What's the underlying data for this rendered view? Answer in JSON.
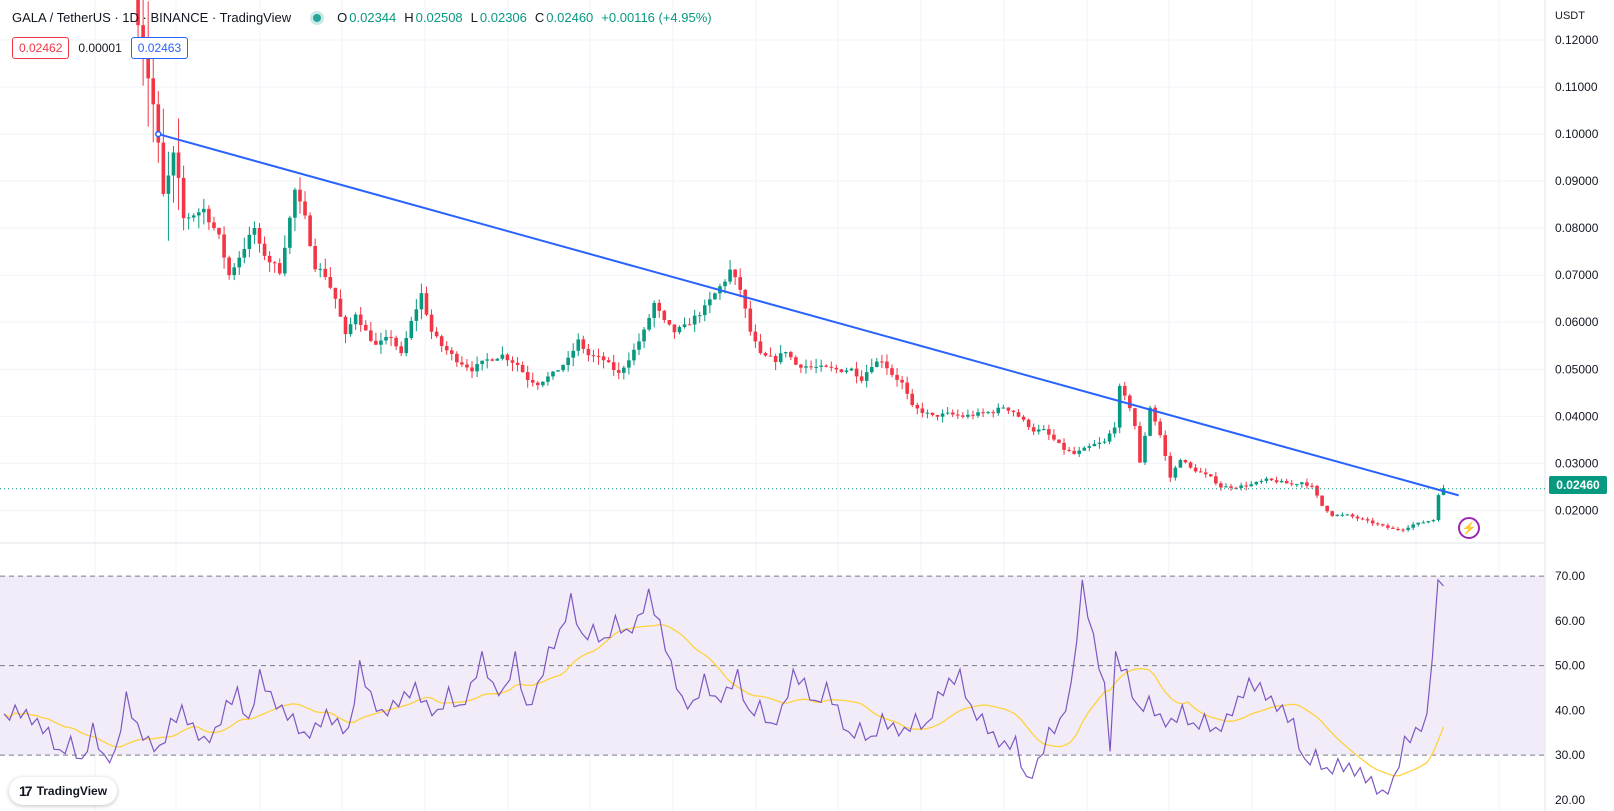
{
  "legend": {
    "title": "GALA / TetherUS · 1D · BINANCE · TradingView",
    "o_label": "O",
    "o_value": "0.02344",
    "h_label": "H",
    "h_value": "0.02508",
    "l_label": "L",
    "l_value": "0.02306",
    "c_label": "C",
    "c_value": "0.02460",
    "change": "+0.00116 (+4.95%)"
  },
  "order": {
    "sell": "0.02462",
    "spread": "0.00001",
    "buy": "0.02463"
  },
  "currency": "USDT",
  "last_price": "0.02460",
  "brand": "TradingView",
  "colors": {
    "up": "#089981",
    "down": "#f23645",
    "trendline": "#2962ff",
    "rsi": "#7e57c2",
    "rsi_ma": "#ffd23f",
    "rsi_band": "#ede7f6"
  },
  "icons": {
    "logo": "tradingview-logo-icon",
    "alert": "lightning-icon"
  },
  "chart_data": [
    {
      "type": "candlestick",
      "symbol": "GALA / TetherUS",
      "interval": "1D",
      "ylim": [
        0.0135,
        0.1285
      ],
      "yticks": [
        "0.02000",
        "0.03000",
        "0.04000",
        "0.05000",
        "0.06000",
        "0.07000",
        "0.08000",
        "0.09000",
        "0.10000",
        "0.11000",
        "0.12000"
      ],
      "anchors": [
        [
          0,
          0.135
        ],
        [
          4,
          0.106
        ],
        [
          6,
          0.086
        ],
        [
          8,
          0.094
        ],
        [
          10,
          0.082
        ],
        [
          14,
          0.084
        ],
        [
          17,
          0.078
        ],
        [
          19,
          0.07
        ],
        [
          22,
          0.076
        ],
        [
          24,
          0.08
        ],
        [
          25,
          0.076
        ],
        [
          27,
          0.073
        ],
        [
          29,
          0.071
        ],
        [
          31,
          0.082
        ],
        [
          32,
          0.088
        ],
        [
          34,
          0.082
        ],
        [
          36,
          0.072
        ],
        [
          38,
          0.07
        ],
        [
          40,
          0.065
        ],
        [
          42,
          0.057
        ],
        [
          44,
          0.062
        ],
        [
          46,
          0.058
        ],
        [
          48,
          0.055
        ],
        [
          51,
          0.057
        ],
        [
          53,
          0.053
        ],
        [
          55,
          0.06
        ],
        [
          57,
          0.066
        ],
        [
          59,
          0.058
        ],
        [
          61,
          0.055
        ],
        [
          64,
          0.052
        ],
        [
          67,
          0.05
        ],
        [
          70,
          0.052
        ],
        [
          73,
          0.053
        ],
        [
          76,
          0.051
        ],
        [
          78,
          0.048
        ],
        [
          80,
          0.047
        ],
        [
          83,
          0.049
        ],
        [
          86,
          0.052
        ],
        [
          88,
          0.056
        ],
        [
          90,
          0.053
        ],
        [
          93,
          0.052
        ],
        [
          96,
          0.049
        ],
        [
          99,
          0.054
        ],
        [
          101,
          0.058
        ],
        [
          103,
          0.064
        ],
        [
          105,
          0.06
        ],
        [
          107,
          0.058
        ],
        [
          109,
          0.059
        ],
        [
          111,
          0.061
        ],
        [
          113,
          0.063
        ],
        [
          115,
          0.066
        ],
        [
          117,
          0.069
        ],
        [
          118,
          0.071
        ],
        [
          120,
          0.067
        ],
        [
          122,
          0.058
        ],
        [
          124,
          0.053
        ],
        [
          127,
          0.052
        ],
        [
          129,
          0.054
        ],
        [
          131,
          0.051
        ],
        [
          134,
          0.0505
        ],
        [
          137,
          0.0502
        ],
        [
          140,
          0.0498
        ],
        [
          142,
          0.05
        ],
        [
          144,
          0.048
        ],
        [
          146,
          0.051
        ],
        [
          148,
          0.052
        ],
        [
          150,
          0.049
        ],
        [
          152,
          0.047
        ],
        [
          154,
          0.042
        ],
        [
          156,
          0.041
        ],
        [
          158,
          0.04
        ],
        [
          161,
          0.0405
        ],
        [
          164,
          0.04
        ],
        [
          167,
          0.0405
        ],
        [
          170,
          0.041
        ],
        [
          172,
          0.042
        ],
        [
          174,
          0.041
        ],
        [
          176,
          0.039
        ],
        [
          178,
          0.037
        ],
        [
          180,
          0.037
        ],
        [
          182,
          0.035
        ],
        [
          184,
          0.033
        ],
        [
          186,
          0.032
        ],
        [
          188,
          0.033
        ],
        [
          190,
          0.034
        ],
        [
          192,
          0.0345
        ],
        [
          194,
          0.038
        ],
        [
          195,
          0.046
        ],
        [
          197,
          0.042
        ],
        [
          198,
          0.038
        ],
        [
          199,
          0.03
        ],
        [
          201,
          0.042
        ],
        [
          203,
          0.036
        ],
        [
          205,
          0.027
        ],
        [
          207,
          0.031
        ],
        [
          209,
          0.029
        ],
        [
          211,
          0.028
        ],
        [
          213,
          0.027
        ],
        [
          215,
          0.025
        ],
        [
          218,
          0.025
        ],
        [
          221,
          0.0255
        ],
        [
          224,
          0.0265
        ],
        [
          227,
          0.026
        ],
        [
          229,
          0.0255
        ],
        [
          231,
          0.026
        ],
        [
          233,
          0.025
        ],
        [
          235,
          0.021
        ],
        [
          237,
          0.019
        ],
        [
          240,
          0.019
        ],
        [
          243,
          0.018
        ],
        [
          246,
          0.017
        ],
        [
          249,
          0.016
        ],
        [
          251,
          0.016
        ],
        [
          253,
          0.017
        ],
        [
          255,
          0.0175
        ],
        [
          257,
          0.018
        ],
        [
          258,
          0.0235
        ],
        [
          259,
          0.0246
        ]
      ],
      "trendline": {
        "from": [
          5,
          0.1
        ],
        "to": [
          262,
          0.0232
        ]
      },
      "last_close": 0.0246
    },
    {
      "type": "line",
      "name": "RSI",
      "ylim": [
        17.5,
        72.5
      ],
      "yticks": [
        "20.00",
        "30.00",
        "40.00",
        "50.00",
        "60.00",
        "70.00"
      ],
      "bands": [
        30,
        50,
        70
      ],
      "anchors": [
        [
          0,
          38
        ],
        [
          2,
          40
        ],
        [
          4,
          39
        ],
        [
          6,
          37
        ],
        [
          8,
          35
        ],
        [
          10,
          30
        ],
        [
          12,
          33
        ],
        [
          14,
          28
        ],
        [
          16,
          36
        ],
        [
          18,
          29
        ],
        [
          20,
          30
        ],
        [
          22,
          43
        ],
        [
          24,
          36
        ],
        [
          26,
          33
        ],
        [
          28,
          31
        ],
        [
          30,
          37
        ],
        [
          32,
          40
        ],
        [
          34,
          36
        ],
        [
          36,
          33
        ],
        [
          38,
          35
        ],
        [
          40,
          41
        ],
        [
          42,
          44
        ],
        [
          44,
          37
        ],
        [
          46,
          48
        ],
        [
          48,
          43
        ],
        [
          50,
          40
        ],
        [
          52,
          38
        ],
        [
          54,
          34
        ],
        [
          56,
          36
        ],
        [
          58,
          39
        ],
        [
          60,
          37
        ],
        [
          62,
          35
        ],
        [
          64,
          50
        ],
        [
          66,
          43
        ],
        [
          68,
          39
        ],
        [
          70,
          41
        ],
        [
          72,
          43
        ],
        [
          74,
          45
        ],
        [
          76,
          41
        ],
        [
          78,
          39
        ],
        [
          80,
          44
        ],
        [
          82,
          40
        ],
        [
          84,
          45
        ],
        [
          86,
          52
        ],
        [
          88,
          45
        ],
        [
          90,
          44
        ],
        [
          92,
          52
        ],
        [
          94,
          40
        ],
        [
          96,
          45
        ],
        [
          98,
          53
        ],
        [
          100,
          57
        ],
        [
          102,
          65
        ],
        [
          104,
          56
        ],
        [
          106,
          58
        ],
        [
          108,
          55
        ],
        [
          110,
          60
        ],
        [
          112,
          57
        ],
        [
          114,
          60
        ],
        [
          116,
          66
        ],
        [
          118,
          59
        ],
        [
          120,
          50
        ],
        [
          122,
          42
        ],
        [
          124,
          41
        ],
        [
          126,
          47
        ],
        [
          128,
          42
        ],
        [
          130,
          44
        ],
        [
          132,
          48
        ],
        [
          134,
          39
        ],
        [
          136,
          41
        ],
        [
          138,
          36
        ],
        [
          140,
          40
        ],
        [
          142,
          48
        ],
        [
          144,
          46
        ],
        [
          146,
          41
        ],
        [
          148,
          45
        ],
        [
          150,
          40
        ],
        [
          152,
          34
        ],
        [
          154,
          36
        ],
        [
          156,
          33
        ],
        [
          158,
          38
        ],
        [
          160,
          36
        ],
        [
          162,
          35
        ],
        [
          164,
          38
        ],
        [
          166,
          36
        ],
        [
          168,
          43
        ],
        [
          170,
          46
        ],
        [
          172,
          48
        ],
        [
          174,
          40
        ],
        [
          176,
          38
        ],
        [
          178,
          34
        ],
        [
          180,
          32
        ],
        [
          182,
          33
        ],
        [
          184,
          24
        ],
        [
          186,
          28
        ],
        [
          188,
          35
        ],
        [
          190,
          37
        ],
        [
          192,
          45
        ],
        [
          194,
          68
        ],
        [
          196,
          56
        ],
        [
          198,
          45
        ],
        [
          199,
          32
        ],
        [
          200,
          52
        ],
        [
          202,
          48
        ],
        [
          204,
          40
        ],
        [
          206,
          42
        ],
        [
          208,
          38
        ],
        [
          210,
          37
        ],
        [
          212,
          40
        ],
        [
          214,
          36
        ],
        [
          216,
          38
        ],
        [
          218,
          35
        ],
        [
          220,
          38
        ],
        [
          222,
          42
        ],
        [
          224,
          46
        ],
        [
          226,
          45
        ],
        [
          228,
          42
        ],
        [
          230,
          40
        ],
        [
          232,
          37
        ],
        [
          234,
          28
        ],
        [
          236,
          30
        ],
        [
          238,
          26
        ],
        [
          240,
          28
        ],
        [
          242,
          27
        ],
        [
          244,
          26
        ],
        [
          246,
          24
        ],
        [
          248,
          21
        ],
        [
          250,
          24
        ],
        [
          252,
          33
        ],
        [
          254,
          35
        ],
        [
          256,
          38
        ],
        [
          258,
          68
        ],
        [
          259,
          69
        ]
      ]
    }
  ]
}
